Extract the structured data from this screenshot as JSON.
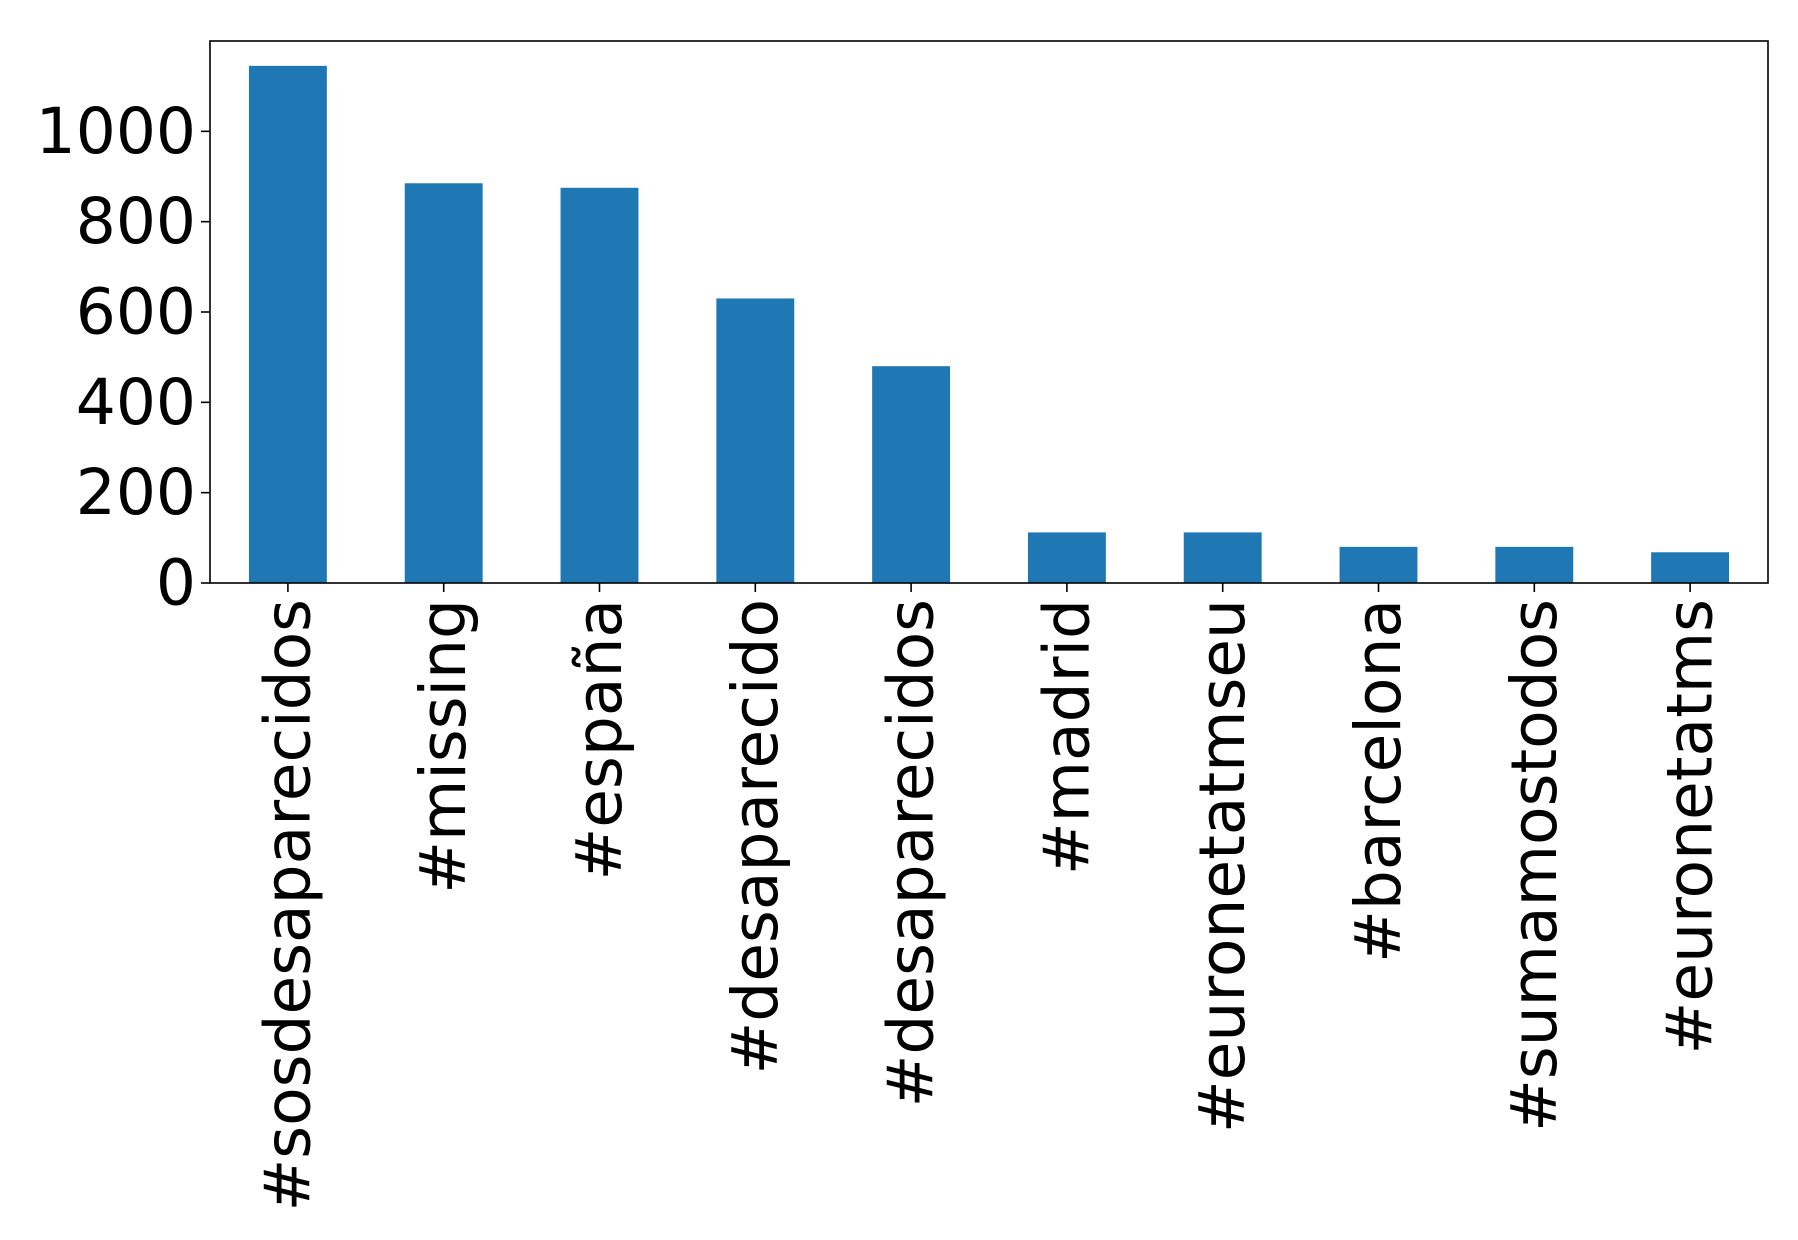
{
  "chart_data": {
    "type": "bar",
    "title": "",
    "xlabel": "",
    "ylabel": "",
    "categories": [
      "#sosdesaparecidos",
      "#missing",
      "#españa",
      "#desaparecido",
      "#desaparecidos",
      "#madrid",
      "#euronetatmseu",
      "#barcelona",
      "#sumamostodos",
      "#euronetatms"
    ],
    "values": [
      1145,
      885,
      875,
      630,
      480,
      112,
      112,
      80,
      80,
      68
    ],
    "ylim": [
      0,
      1200
    ],
    "yticks": [
      0,
      200,
      400,
      600,
      800,
      1000
    ],
    "grid": false,
    "legend": "none",
    "bar_color": "#1f77b4"
  }
}
